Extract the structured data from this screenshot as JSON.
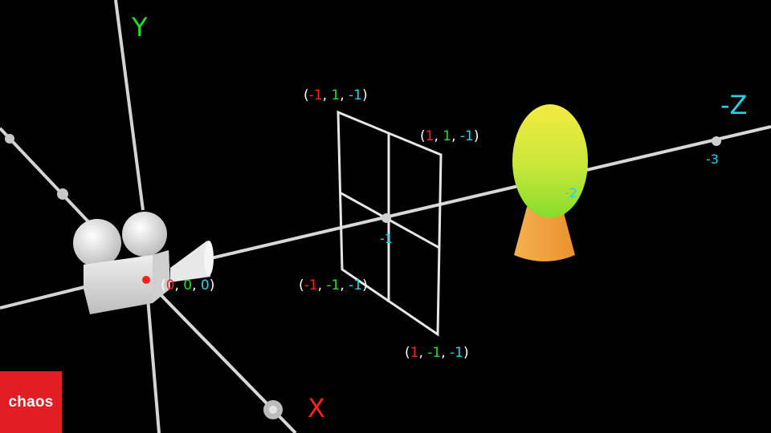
{
  "axes": {
    "y_label": "Y",
    "x_label": "X",
    "z_label": "-Z",
    "ticks": {
      "z_minus_1": "-1",
      "z_minus_2": "-2",
      "z_minus_3": "-3"
    }
  },
  "coords": {
    "origin": [
      "0",
      "0",
      "0"
    ],
    "top_left": [
      "-1",
      "1",
      "-1"
    ],
    "top_right": [
      "1",
      "1",
      "-1"
    ],
    "bottom_left": [
      "-1",
      "-1",
      "-1"
    ],
    "bottom_right": [
      "1",
      "-1",
      "-1"
    ]
  },
  "colors": {
    "x": "#ff2020",
    "y": "#22dd22",
    "z": "#22d4e6",
    "axis": "#d8d8d8",
    "egg_top": "#f0ec3c",
    "egg_bottom": "#8ee02a",
    "stand": "#f2a445",
    "logo": "#e01e23"
  },
  "logo": {
    "text": "chaos"
  }
}
